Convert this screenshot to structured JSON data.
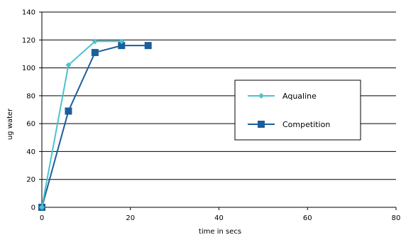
{
  "chart_data": {
    "type": "line",
    "xlabel": "time in secs",
    "ylabel": "ug water",
    "xlim": [
      0,
      80
    ],
    "ylim": [
      0,
      140
    ],
    "x_ticks": [
      0,
      20,
      40,
      60,
      80
    ],
    "y_ticks": [
      0,
      20,
      40,
      60,
      80,
      100,
      120,
      140
    ],
    "grid": "horizontal",
    "legend_position": "right",
    "series": [
      {
        "name": "Aqualine",
        "color": "#4CC3CC",
        "marker": "diamond",
        "x": [
          0,
          6,
          12,
          18
        ],
        "y": [
          0,
          102,
          119,
          119
        ]
      },
      {
        "name": "Competition",
        "color": "#1B5E9C",
        "marker": "square",
        "x": [
          0,
          6,
          12,
          18,
          24
        ],
        "y": [
          0,
          69,
          111,
          116,
          116
        ]
      }
    ]
  }
}
